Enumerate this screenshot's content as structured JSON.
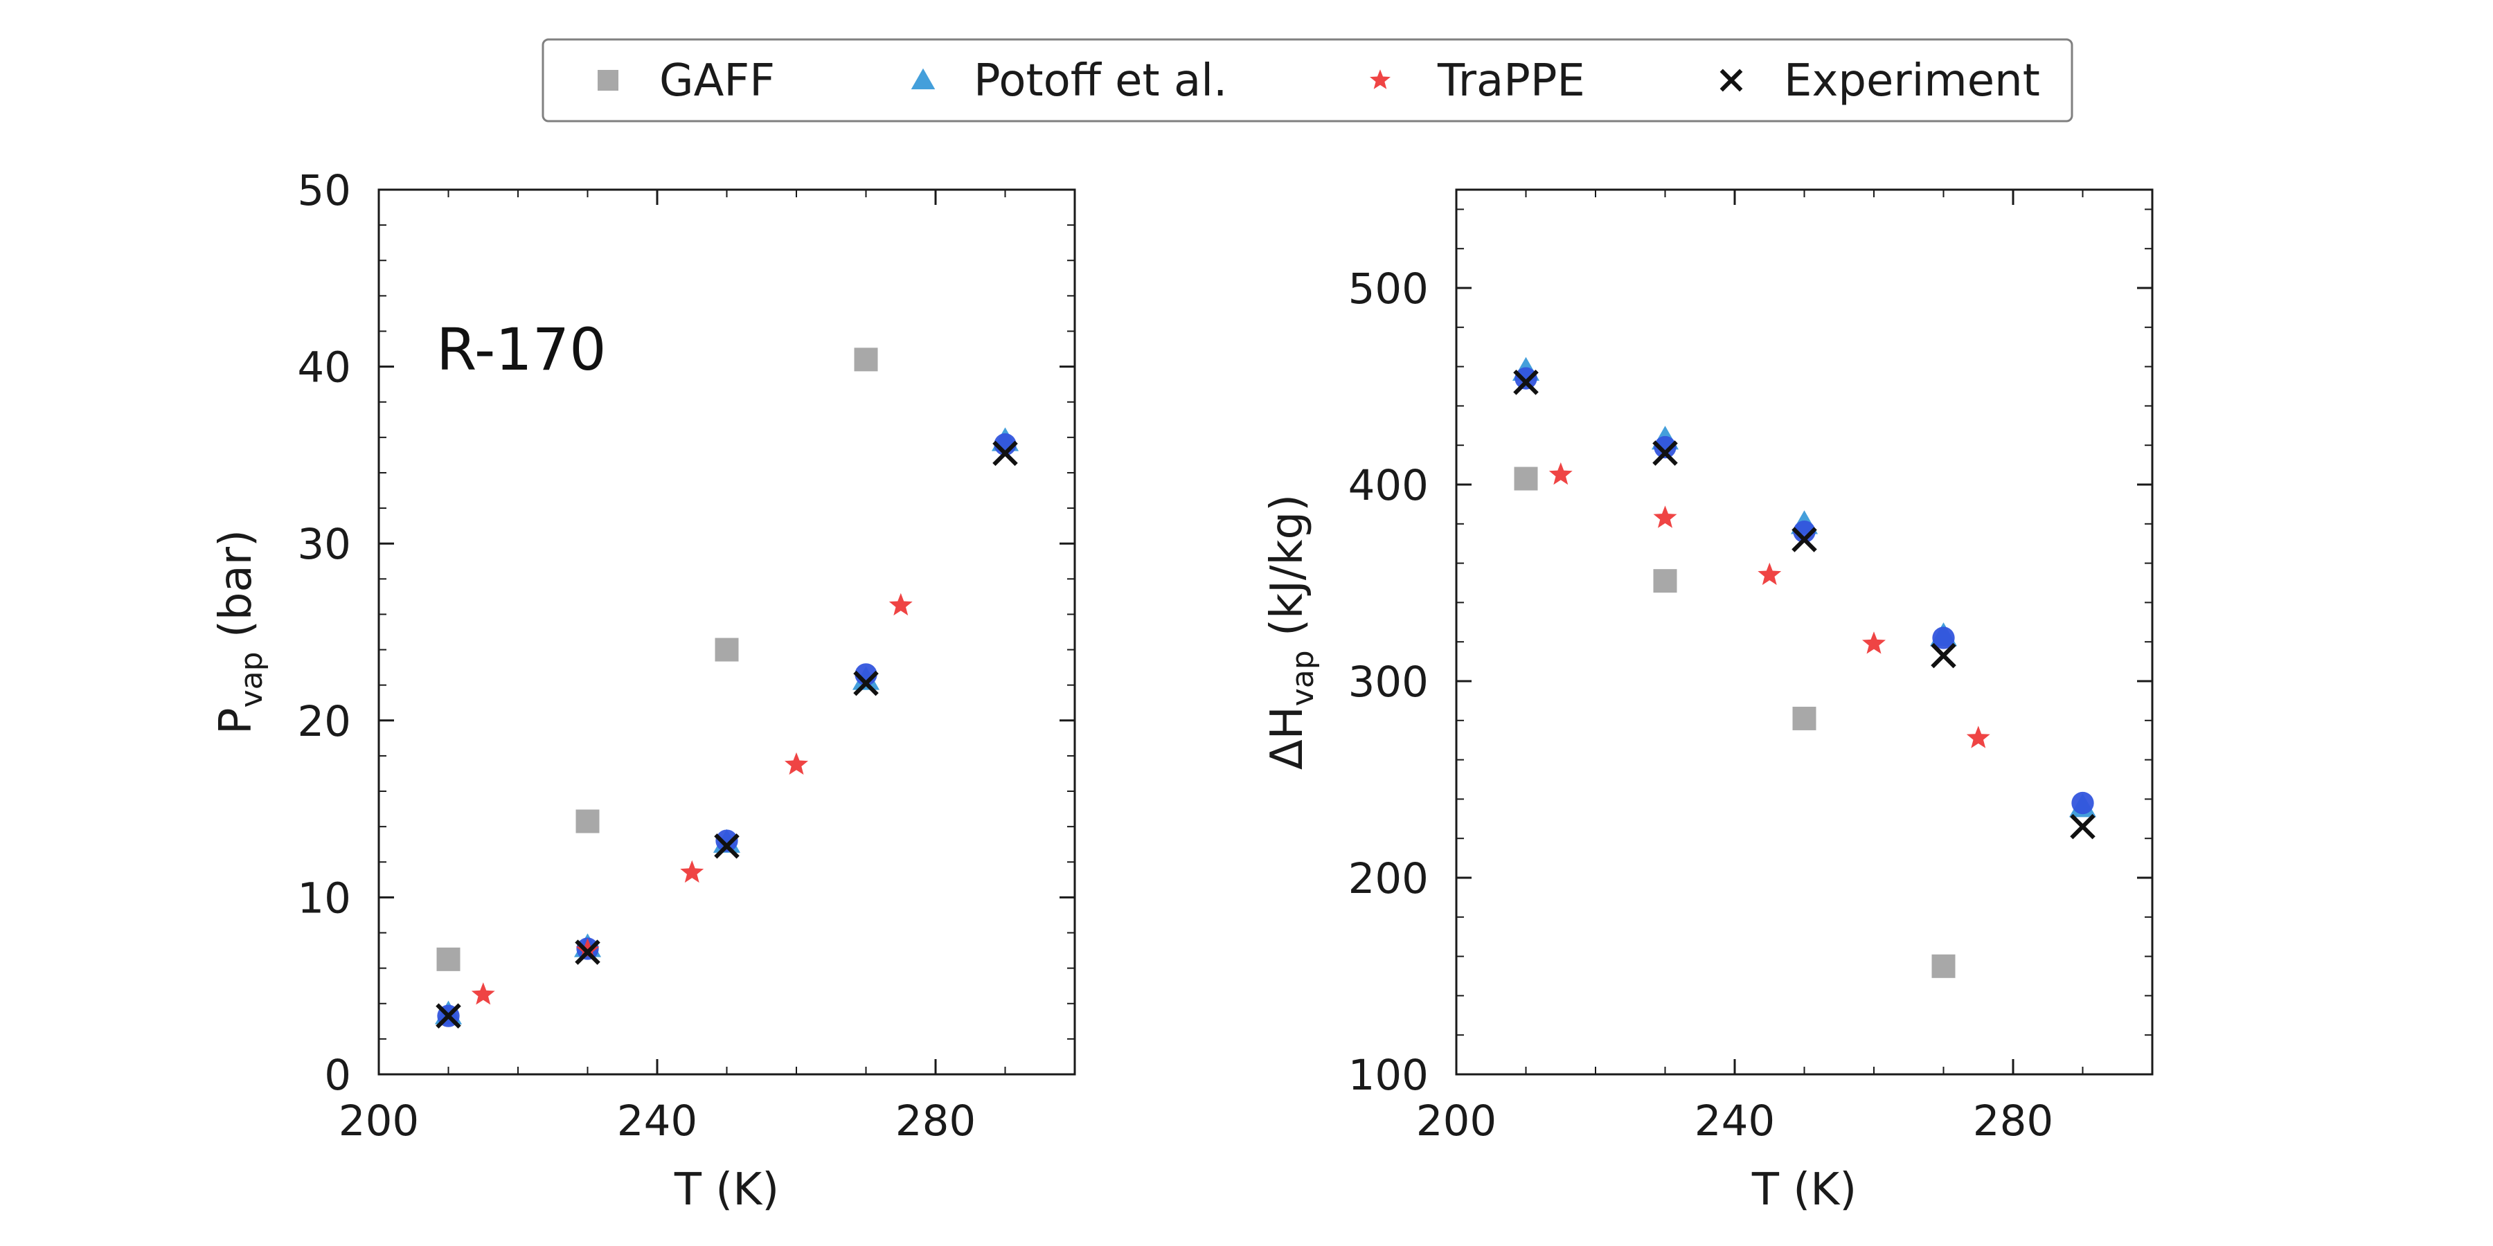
{
  "legend": [
    {
      "name": "GAFF",
      "marker": "square",
      "color": "#999999"
    },
    {
      "name": "Potoff et al.",
      "marker": "triangle",
      "color": "#3a9ad9"
    },
    {
      "name": "TraPPE",
      "marker": "star",
      "color": "#ee3a3a"
    },
    {
      "name": "Experiment",
      "marker": "x",
      "color": "#111111"
    }
  ],
  "chart_data": [
    {
      "type": "scatter",
      "annotation": "R-170",
      "xlabel": "T (K)",
      "ylabel_main": "P",
      "ylabel_sub": "vap",
      "ylabel_unit": " (bar)",
      "xlim": [
        200,
        300
      ],
      "ylim": [
        0,
        50
      ],
      "xticks": [
        200,
        240,
        280
      ],
      "yticks": [
        0,
        10,
        20,
        30,
        40,
        50
      ],
      "grid": false,
      "series": [
        {
          "name": "GAFF",
          "marker": "square",
          "color": "#999999",
          "x": [
            210,
            230,
            250,
            270
          ],
          "y": [
            6.5,
            14.3,
            24.0,
            40.4
          ]
        },
        {
          "name": "Potoff et al.",
          "marker": "triangle",
          "color": "#3a9ad9",
          "x": [
            210,
            230,
            250,
            270,
            290
          ],
          "y": [
            3.4,
            7.2,
            13.1,
            22.3,
            35.8
          ]
        },
        {
          "name": "",
          "marker": "circle",
          "color": "#3355dd",
          "x": [
            210,
            230,
            250,
            270,
            290
          ],
          "y": [
            3.3,
            7.1,
            13.2,
            22.6,
            35.6
          ]
        },
        {
          "name": "TraPPE",
          "marker": "star",
          "color": "#ee3a3a",
          "x": [
            215,
            230,
            245,
            260,
            275
          ],
          "y": [
            4.5,
            7.0,
            11.4,
            17.5,
            26.5
          ]
        },
        {
          "name": "Experiment",
          "marker": "x",
          "color": "#111111",
          "x": [
            210,
            230,
            250,
            270,
            290
          ],
          "y": [
            3.3,
            6.9,
            12.9,
            22.1,
            35.1
          ]
        }
      ]
    },
    {
      "type": "scatter",
      "xlabel": "T (K)",
      "ylabel_main": "ΔH",
      "ylabel_sub": "vap",
      "ylabel_unit": " (kJ/kg)",
      "xlim": [
        200,
        300
      ],
      "ylim": [
        100,
        550
      ],
      "xticks": [
        200,
        240,
        280
      ],
      "yticks": [
        100,
        200,
        300,
        400,
        500
      ],
      "grid": false,
      "series": [
        {
          "name": "GAFF",
          "marker": "square",
          "color": "#999999",
          "x": [
            210,
            230,
            250,
            270
          ],
          "y": [
            403,
            351,
            281,
            155
          ]
        },
        {
          "name": "Potoff et al.",
          "marker": "triangle",
          "color": "#3a9ad9",
          "x": [
            210,
            230,
            250,
            270,
            290
          ],
          "y": [
            458,
            423,
            380,
            323,
            236
          ]
        },
        {
          "name": "",
          "marker": "circle",
          "color": "#3355dd",
          "x": [
            210,
            230,
            250,
            270,
            290
          ],
          "y": [
            454,
            419,
            376,
            322,
            238
          ]
        },
        {
          "name": "TraPPE",
          "marker": "star",
          "color": "#ee3a3a",
          "x": [
            215,
            230,
            245,
            260,
            275
          ],
          "y": [
            405,
            383,
            354,
            319,
            271
          ]
        },
        {
          "name": "Experiment",
          "marker": "x",
          "color": "#111111",
          "x": [
            210,
            230,
            250,
            270,
            290
          ],
          "y": [
            452,
            416,
            372,
            313,
            226
          ]
        }
      ]
    }
  ]
}
